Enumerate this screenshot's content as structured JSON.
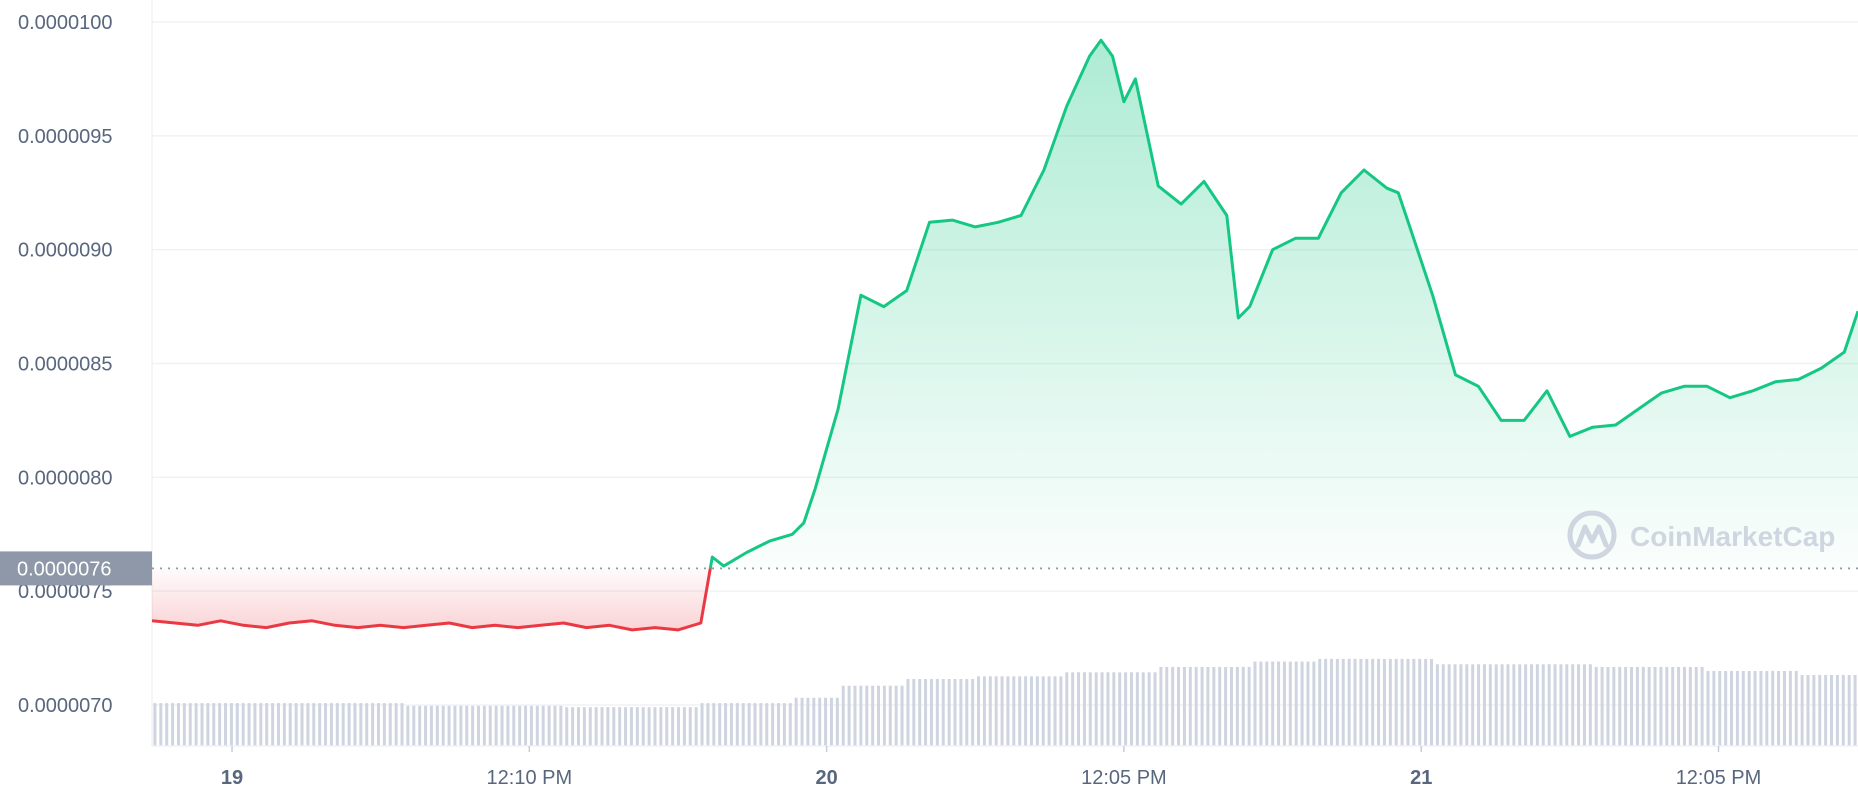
{
  "chart_data": {
    "type": "area",
    "watermark": "CoinMarketCap",
    "y_ticks": [
      "0.0000100",
      "0.0000095",
      "0.0000090",
      "0.0000085",
      "0.0000080",
      "0.0000075",
      "0.0000070"
    ],
    "y_tick_values": [
      1e-05,
      9.5e-06,
      9e-06,
      8.5e-06,
      8e-06,
      7.5e-06,
      7e-06
    ],
    "ylim": [
      6.82e-06,
      1.01e-05
    ],
    "x_ticks": [
      {
        "label": "19",
        "t": 3.5,
        "bold": true
      },
      {
        "label": "12:10 PM",
        "t": 16.5,
        "bold": false
      },
      {
        "label": "20",
        "t": 29.5,
        "bold": true
      },
      {
        "label": "12:05 PM",
        "t": 42.5,
        "bold": false
      },
      {
        "label": "21",
        "t": 55.5,
        "bold": true
      },
      {
        "label": "12:05 PM",
        "t": 68.5,
        "bold": false
      }
    ],
    "xlim": [
      0,
      74.6
    ],
    "baseline_price": 7.6e-06,
    "baseline_label": "0.0000076",
    "grid": true,
    "colors": {
      "up": "#16c784",
      "down": "#ea3943",
      "grid": "#eff2f5",
      "volume": "#c7cedb",
      "axis_text": "#58667e",
      "badge": "#8f98a8"
    },
    "price_series": {
      "x": [
        0,
        1,
        2,
        3,
        4,
        5,
        6,
        7,
        8,
        9,
        10,
        11,
        12,
        13,
        14,
        15,
        16,
        17,
        18,
        19,
        20,
        21,
        22,
        23,
        24,
        24.5,
        25,
        26,
        27,
        28,
        28.5,
        29,
        30,
        31,
        32,
        33,
        34,
        35,
        36,
        37,
        38,
        39,
        40,
        41,
        41.5,
        42,
        42.5,
        43,
        44,
        45,
        46,
        47,
        47.5,
        48,
        49,
        50,
        51,
        52,
        53,
        54,
        54.5,
        55,
        56,
        57,
        58,
        59,
        60,
        61,
        62,
        63,
        64,
        65,
        66,
        67,
        68,
        69,
        70,
        71,
        72,
        73,
        74,
        74.6
      ],
      "y": [
        7.37e-06,
        7.36e-06,
        7.35e-06,
        7.37e-06,
        7.35e-06,
        7.34e-06,
        7.36e-06,
        7.37e-06,
        7.35e-06,
        7.34e-06,
        7.35e-06,
        7.34e-06,
        7.35e-06,
        7.36e-06,
        7.34e-06,
        7.35e-06,
        7.34e-06,
        7.35e-06,
        7.36e-06,
        7.34e-06,
        7.35e-06,
        7.33e-06,
        7.34e-06,
        7.33e-06,
        7.36e-06,
        7.65e-06,
        7.61e-06,
        7.67e-06,
        7.72e-06,
        7.75e-06,
        7.8e-06,
        7.95e-06,
        8.3e-06,
        8.8e-06,
        8.75e-06,
        8.82e-06,
        9.12e-06,
        9.13e-06,
        9.1e-06,
        9.12e-06,
        9.15e-06,
        9.35e-06,
        9.63e-06,
        9.85e-06,
        9.92e-06,
        9.85e-06,
        9.65e-06,
        9.75e-06,
        9.28e-06,
        9.2e-06,
        9.3e-06,
        9.15e-06,
        8.7e-06,
        8.75e-06,
        9e-06,
        9.05e-06,
        9.05e-06,
        9.25e-06,
        9.35e-06,
        9.27e-06,
        9.25e-06,
        9.1e-06,
        8.8e-06,
        8.45e-06,
        8.4e-06,
        8.25e-06,
        8.25e-06,
        8.38e-06,
        8.18e-06,
        8.22e-06,
        8.23e-06,
        8.3e-06,
        8.37e-06,
        8.4e-06,
        8.4e-06,
        8.35e-06,
        8.38e-06,
        8.42e-06,
        8.43e-06,
        8.48e-06,
        8.55e-06,
        8.73e-06
      ]
    },
    "volume_levels": [
      {
        "from": 0,
        "to": 11,
        "level": 0.32
      },
      {
        "from": 11,
        "to": 18,
        "level": 0.3
      },
      {
        "from": 18,
        "to": 24,
        "level": 0.29
      },
      {
        "from": 24,
        "to": 28,
        "level": 0.32
      },
      {
        "from": 28,
        "to": 30,
        "level": 0.36
      },
      {
        "from": 30,
        "to": 33,
        "level": 0.45
      },
      {
        "from": 33,
        "to": 36,
        "level": 0.5
      },
      {
        "from": 36,
        "to": 40,
        "level": 0.52
      },
      {
        "from": 40,
        "to": 44,
        "level": 0.55
      },
      {
        "from": 44,
        "to": 48,
        "level": 0.59
      },
      {
        "from": 48,
        "to": 51,
        "level": 0.63
      },
      {
        "from": 51,
        "to": 56,
        "level": 0.65
      },
      {
        "from": 56,
        "to": 63,
        "level": 0.61
      },
      {
        "from": 63,
        "to": 68,
        "level": 0.59
      },
      {
        "from": 68,
        "to": 72,
        "level": 0.56
      },
      {
        "from": 72,
        "to": 74.6,
        "level": 0.53
      }
    ]
  }
}
